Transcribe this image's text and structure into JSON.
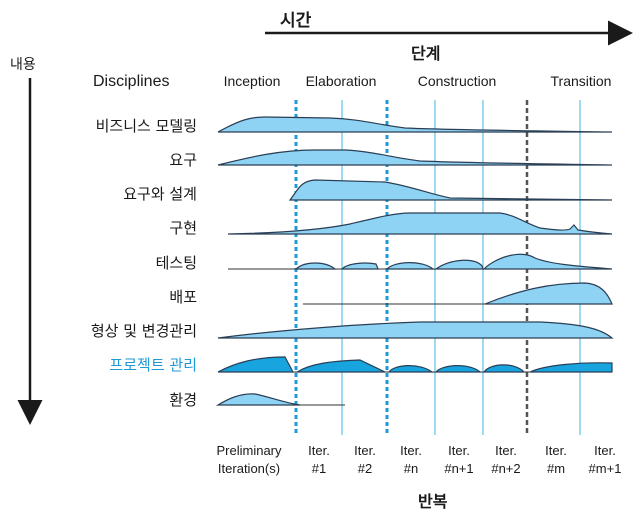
{
  "header": {
    "time_axis_label": "시간",
    "content_axis_label": "내용",
    "phases_title": "단계",
    "iterations_title": "반복",
    "disciplines_header": "Disciplines"
  },
  "phases": [
    "Inception",
    "Elaboration",
    "Construction",
    "Transition"
  ],
  "disciplines": [
    {
      "label": "비즈니스 모델링"
    },
    {
      "label": "요구"
    },
    {
      "label": "요구와 설계"
    },
    {
      "label": "구현"
    },
    {
      "label": "테스팅"
    },
    {
      "label": "배포"
    },
    {
      "label": "형상 및 변경관리"
    },
    {
      "label": "프로젝트 관리"
    },
    {
      "label": "환경"
    }
  ],
  "iterations": [
    {
      "line1": "Preliminary",
      "line2": "Iteration(s)"
    },
    {
      "line1": "Iter.",
      "line2": "#1"
    },
    {
      "line1": "Iter.",
      "line2": "#2"
    },
    {
      "line1": "Iter.",
      "line2": "#n"
    },
    {
      "line1": "Iter.",
      "line2": "#n+1"
    },
    {
      "line1": "Iter.",
      "line2": "#n+2"
    },
    {
      "line1": "Iter.",
      "line2": "#m"
    },
    {
      "line1": "Iter.",
      "line2": "#m+1"
    }
  ],
  "colors": {
    "hump_fill": "#8fd3f4",
    "hump_fill_dark": "#17a4df",
    "phase_boundary": "#1e9ad6",
    "iteration_line": "#3bb7e6",
    "highlight_text": "#1e9ad6"
  }
}
